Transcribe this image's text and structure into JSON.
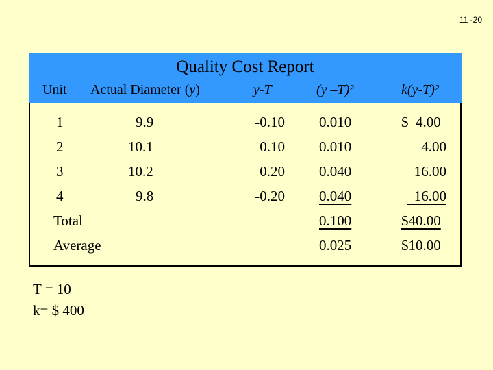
{
  "slide_number": "11 -20",
  "report": {
    "title": "Quality Cost Report",
    "columns": {
      "unit": "Unit",
      "diameter_text": "Actual Diameter (",
      "diameter_var": "y",
      "diameter_close": ")",
      "dev": "y-T",
      "dev_sq": "(y –T)²",
      "cost": "k(y-T)²"
    },
    "rows": [
      {
        "unit": "1",
        "diameter": "9.9",
        "dev": "-0.10",
        "dev_sq": "0.010",
        "cost": "$  4.00"
      },
      {
        "unit": "2",
        "diameter": "10.1",
        "dev": "0.10",
        "dev_sq": "0.010",
        "cost": "4.00"
      },
      {
        "unit": "3",
        "diameter": "10.2",
        "dev": "0.20",
        "dev_sq": "0.040",
        "cost": "16.00"
      },
      {
        "unit": "4",
        "diameter": "9.8",
        "dev": "-0.20",
        "dev_sq": "0.040",
        "cost": "16.00"
      }
    ],
    "total": {
      "label": "Total",
      "dev_sq": "0.100",
      "cost": "$40.00"
    },
    "average": {
      "label": "Average",
      "dev_sq": "0.025",
      "cost": "$10.00"
    }
  },
  "notes": {
    "target": "T = 10",
    "k": "k= $ 400"
  },
  "colors": {
    "background": "#FFFFCC",
    "header_band": "#3399FF"
  }
}
